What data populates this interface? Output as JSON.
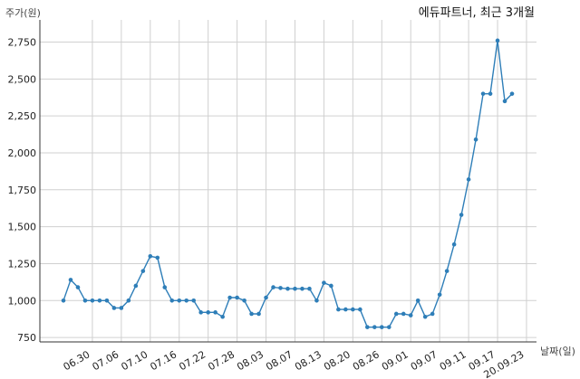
{
  "chart_data": {
    "type": "line",
    "title": "에듀파트너, 최근 3개월",
    "ylabel": "주가(원)",
    "xlabel": "날짜(일)",
    "ylim": [
      720,
      2900
    ],
    "yticks": [
      "750",
      "1,000",
      "1,250",
      "1,500",
      "1,750",
      "2,000",
      "2,250",
      "2,500",
      "2,750"
    ],
    "ytick_values": [
      750,
      1000,
      1250,
      1500,
      1750,
      2000,
      2250,
      2500,
      2750
    ],
    "xtick_labels": [
      "06.30",
      "07.06",
      "07.10",
      "07.16",
      "07.22",
      "07.28",
      "08.03",
      "08.07",
      "08.13",
      "08.20",
      "08.26",
      "09.01",
      "09.07",
      "09.11",
      "09.17",
      "20.09.23"
    ],
    "xtick_index": [
      4,
      8,
      12,
      16,
      20,
      24,
      28,
      32,
      36,
      40,
      44,
      48,
      52,
      56,
      60,
      64
    ],
    "grid": true,
    "line_color": "#2e7eb8",
    "series": [
      {
        "values": [
          1000,
          1140,
          1090,
          1000,
          1000,
          1000,
          1000,
          950,
          950,
          1000,
          1100,
          1200,
          1300,
          1290,
          1090,
          1000,
          1000,
          1000,
          1000,
          920,
          920,
          920,
          890,
          1020,
          1020,
          1000,
          910,
          910,
          1020,
          1090,
          1085,
          1080,
          1080,
          1080,
          1080,
          1000,
          1120,
          1100,
          940,
          940,
          940,
          940,
          820,
          820,
          820,
          820,
          910,
          910,
          900,
          1000,
          890,
          910,
          1040,
          1200,
          1380,
          1580,
          1820,
          2090,
          2400,
          2400,
          2760,
          2350,
          2400
        ]
      }
    ]
  }
}
